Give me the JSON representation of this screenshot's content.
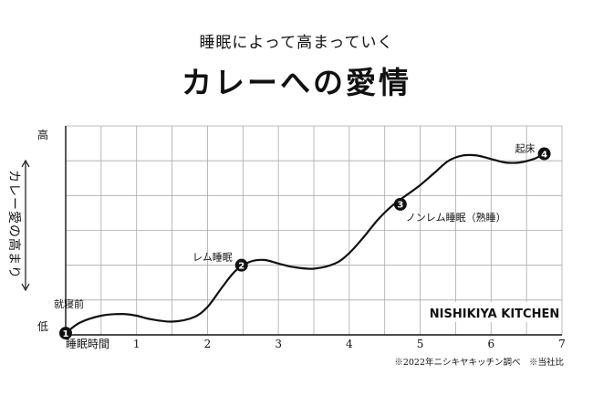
{
  "header": {
    "subtitle": "睡眠によって高まっていく",
    "title": "カレーへの愛情"
  },
  "chart_data": {
    "type": "line",
    "title": "カレーへの愛情",
    "subtitle": "睡眠によって高まっていく",
    "xlabel": "睡眠時間",
    "ylabel": "カレー愛の高まり",
    "y_high_label": "高",
    "y_low_label": "低",
    "xlim": [
      0,
      7
    ],
    "ylim": [
      0,
      6
    ],
    "x_ticks": [
      1,
      2,
      3,
      4,
      5,
      6,
      7
    ],
    "grid": true,
    "x": [
      0,
      0.2,
      0.5,
      0.8,
      1.0,
      1.2,
      1.5,
      1.8,
      2.0,
      2.2,
      2.4,
      2.6,
      2.8,
      3.0,
      3.2,
      3.5,
      3.8,
      4.0,
      4.2,
      4.4,
      4.6,
      4.8,
      5.0,
      5.2,
      5.4,
      5.6,
      5.8,
      6.0,
      6.2,
      6.4,
      6.6,
      6.75
    ],
    "y": [
      0.05,
      0.35,
      0.55,
      0.6,
      0.55,
      0.45,
      0.38,
      0.5,
      0.8,
      1.35,
      1.85,
      2.1,
      2.15,
      2.05,
      1.95,
      1.9,
      2.05,
      2.35,
      2.8,
      3.3,
      3.7,
      4.0,
      4.3,
      4.65,
      5.0,
      5.15,
      5.15,
      5.05,
      4.95,
      4.95,
      5.05,
      5.2
    ],
    "points": [
      {
        "n": "1",
        "x": 0.0,
        "y": 0.05,
        "label": "就寝前"
      },
      {
        "n": "2",
        "x": 2.48,
        "y": 2.0,
        "label": "レム睡眠"
      },
      {
        "n": "3",
        "x": 4.72,
        "y": 3.75,
        "label": "ノンレム睡眠（熟睡）"
      },
      {
        "n": "4",
        "x": 6.75,
        "y": 5.2,
        "label": "起床"
      }
    ]
  },
  "brand": "NISHIKIYA KITCHEN",
  "footnote": "※2022年ニシキヤキッチン調べ　※当社比"
}
